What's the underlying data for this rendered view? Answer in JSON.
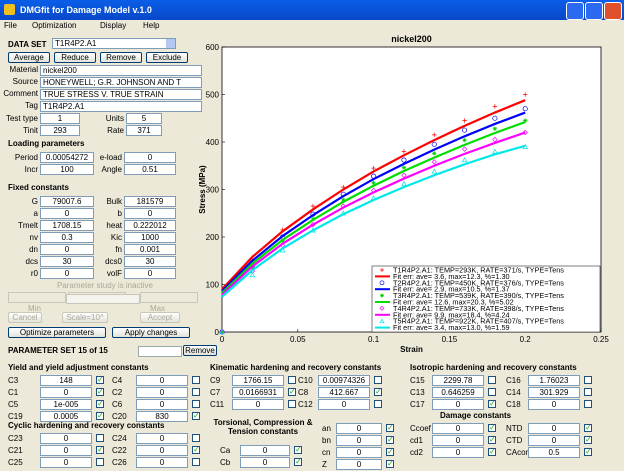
{
  "window": {
    "title": "DMGfit for Damage Model v.1.0",
    "menu": [
      "File",
      "Optimization",
      "Display",
      "Help"
    ]
  },
  "data_set": {
    "label": "DATA SET",
    "selected": "T1R4P2.A1",
    "buttons": [
      "Average",
      "Reduce",
      "Remove",
      "Exclude"
    ],
    "fields": [
      {
        "label": "Material",
        "value": "nickel200"
      },
      {
        "label": "Source",
        "value": "HONEYWELL; G.R. JOHNSON AND T"
      },
      {
        "label": "Comment",
        "value": "TRUE STRESS V. TRUE STRAIN"
      },
      {
        "label": "Tag",
        "value": "T1R4P2.A1"
      }
    ],
    "pairs": [
      {
        "label": "Test type",
        "value": "1",
        "label2": "Units",
        "value2": "5"
      },
      {
        "label": "Tinit",
        "value": "293",
        "label2": "Rate",
        "value2": "371"
      }
    ]
  },
  "loading": {
    "title": "Loading parameters",
    "pairs": [
      {
        "label": "Period",
        "value": "0.00054272",
        "label2": "e-load",
        "value2": "0"
      },
      {
        "label": "Incr",
        "value": "100",
        "label2": "Angle",
        "value2": "0.51"
      }
    ]
  },
  "fixed": {
    "title": "Fixed constants",
    "pairs": [
      {
        "label": "G",
        "value": "79007.6",
        "label2": "Bulk",
        "value2": "181579"
      },
      {
        "label": "a",
        "value": "0",
        "label2": "b",
        "value2": "0"
      },
      {
        "label": "Tmelt",
        "value": "1708.15",
        "label2": "heat",
        "value2": "0.222012"
      },
      {
        "label": "nv",
        "value": "0.3",
        "label2": "Kic",
        "value2": "1000"
      },
      {
        "label": "dn",
        "value": "0",
        "label2": "fn",
        "value2": "0.001"
      },
      {
        "label": "dcs",
        "value": "30",
        "label2": "dcs0",
        "value2": "30"
      },
      {
        "label": "r0",
        "value": "0",
        "label2": "volF",
        "value2": "0"
      }
    ]
  },
  "study": {
    "note": "Parameter study is inactive",
    "min": "Min",
    "max": "Max",
    "buttons": [
      "Cancel",
      "Scale=10^",
      "Accept"
    ]
  },
  "actions": [
    "Optimize parameters",
    "Apply changes"
  ],
  "parameter_set": {
    "label": "PARAMETER SET 15 of 15",
    "button": "Remove"
  },
  "groups": [
    {
      "title": "Yield and yield adjustment constants",
      "fields": [
        {
          "label": "C3",
          "value": "148",
          "checked": true
        },
        {
          "label": "C4",
          "value": "0",
          "checked": false
        },
        {
          "label": "C1",
          "value": "0",
          "checked": true
        },
        {
          "label": "C2",
          "value": "0",
          "checked": false
        },
        {
          "label": "C5",
          "value": "1e-005",
          "checked": true
        },
        {
          "label": "C6",
          "value": "0",
          "checked": false
        },
        {
          "label": "C19",
          "value": "0.0005",
          "checked": true
        },
        {
          "label": "C20",
          "value": "830",
          "checked": true
        }
      ]
    },
    {
      "title": "Cyclic hardening and recovery constants",
      "fields": [
        {
          "label": "C23",
          "value": "0",
          "checked": false
        },
        {
          "label": "C24",
          "value": "0",
          "checked": false
        },
        {
          "label": "C21",
          "value": "0",
          "checked": true
        },
        {
          "label": "C22",
          "value": "0",
          "checked": true
        },
        {
          "label": "C25",
          "value": "0",
          "checked": false
        },
        {
          "label": "C26",
          "value": "0",
          "checked": false
        }
      ]
    },
    {
      "title": "Kinematic hardening and recovery constants",
      "fields": [
        {
          "label": "C9",
          "value": "1766.15",
          "checked": false
        },
        {
          "label": "C10",
          "value": "0.00974326",
          "checked": false
        },
        {
          "label": "C7",
          "value": "0.0166931",
          "checked": true
        },
        {
          "label": "C8",
          "value": "412.667",
          "checked": true
        },
        {
          "label": "C11",
          "value": "0",
          "checked": false
        },
        {
          "label": "C12",
          "value": "0",
          "checked": false
        }
      ]
    },
    {
      "title": "Torsional, Compression & Tension constants",
      "fields": [
        {
          "label": "Ca",
          "value": "0",
          "checked": true
        },
        {
          "label": "Cb",
          "value": "0",
          "checked": true
        }
      ]
    },
    {
      "fields": [
        {
          "label": "an",
          "value": "0",
          "checked": true
        },
        {
          "label": "bn",
          "value": "0",
          "checked": true
        },
        {
          "label": "cn",
          "value": "0",
          "checked": true
        },
        {
          "label": "Z",
          "value": "0",
          "checked": true
        }
      ]
    },
    {
      "title": "Isotropic hardening and recovery constants",
      "fields": [
        {
          "label": "C15",
          "value": "2299.78",
          "checked": false
        },
        {
          "label": "C16",
          "value": "1.76023",
          "checked": false
        },
        {
          "label": "C13",
          "value": "0.646259",
          "checked": false
        },
        {
          "label": "C14",
          "value": "301.929",
          "checked": false
        },
        {
          "label": "C17",
          "value": "0",
          "checked": true
        },
        {
          "label": "C18",
          "value": "0",
          "checked": false
        }
      ]
    },
    {
      "title": "Damage constants",
      "fields": [
        {
          "label": "Ccoef",
          "value": "0",
          "checked": true
        },
        {
          "label": "NTD",
          "value": "0",
          "checked": true
        },
        {
          "label": "cd1",
          "value": "0",
          "checked": true
        },
        {
          "label": "CTD",
          "value": "0",
          "checked": true
        },
        {
          "label": "cd2",
          "value": "0",
          "checked": true
        },
        {
          "label": "CAcon",
          "value": "0.5",
          "checked": true
        }
      ]
    }
  ],
  "chart_data": {
    "type": "scatter",
    "title": "nickel200",
    "xlabel": "Strain",
    "ylabel": "Stress (MPa)",
    "x": [
      0,
      0.02,
      0.04,
      0.06,
      0.08,
      0.1,
      0.12,
      0.14,
      0.16,
      0.18,
      0.2
    ],
    "xlim": [
      0,
      0.25
    ],
    "xticks": [
      0,
      0.05,
      0.1,
      0.15,
      0.2,
      0.25
    ],
    "ylim": [
      0,
      600
    ],
    "yticks": [
      0,
      100,
      200,
      300,
      400,
      500,
      600
    ],
    "series": [
      {
        "name": "T1R4P2.A1: TEMP=293K, RATE=371/s, TYPE=Tens",
        "color": "#ff0000",
        "marker": "plus",
        "values": [
          0,
          150,
          215,
          265,
          305,
          345,
          380,
          415,
          445,
          475,
          500
        ]
      },
      {
        "name": "Fit err: ave= 3.6, max=12.3, %=1.30",
        "color": "#ff0000",
        "values": [
          90,
          158,
          212,
          258,
          300,
          338,
          372,
          404,
          434,
          462,
          488
        ]
      },
      {
        "name": "T2R4P2.A1: TEMP=450K, RATE=376/s, TYPE=Tens",
        "color": "#0000ff",
        "marker": "circle",
        "values": [
          0,
          140,
          200,
          248,
          290,
          328,
          362,
          395,
          425,
          450,
          470
        ]
      },
      {
        "name": "Fit err: ave= 2.9, max=10.5, %=1.37",
        "color": "#0000ff",
        "values": [
          86,
          150,
          202,
          246,
          286,
          322,
          354,
          384,
          412,
          438,
          462
        ]
      },
      {
        "name": "T3R4P2.A1: TEMP=539K, RATE=390/s, TYPE=Tens",
        "color": "#00cc00",
        "marker": "star",
        "values": [
          0,
          135,
          192,
          238,
          278,
          314,
          346,
          376,
          404,
          428,
          445
        ]
      },
      {
        "name": "Fit err: ave= 12.6, max=20.3, %=5.02",
        "color": "#00dd00",
        "values": [
          82,
          144,
          194,
          236,
          274,
          308,
          339,
          367,
          394,
          419,
          442
        ]
      },
      {
        "name": "T4R4P2.A1: TEMP=733K, RATE=398/s, TYPE=Tens",
        "color": "#ff00ff",
        "marker": "diamond",
        "values": [
          0,
          128,
          182,
          226,
          265,
          298,
          330,
          358,
          385,
          405,
          420
        ]
      },
      {
        "name": "Fit err: ave= 9.9, max=18.4, %=4.24",
        "color": "#ff00ff",
        "values": [
          78,
          138,
          186,
          226,
          262,
          294,
          323,
          350,
          375,
          398,
          420
        ]
      },
      {
        "name": "T5R4P2.A1: TEMP=922K, RATE=407/s, TYPE=Tens",
        "color": "#00e0e0",
        "marker": "triangle",
        "values": [
          0,
          120,
          172,
          214,
          250,
          282,
          312,
          338,
          362,
          380,
          390
        ]
      },
      {
        "name": "Fit err: ave= 3.4, max=13.0, %=1.59",
        "color": "#00e8e8",
        "values": [
          74,
          130,
          176,
          214,
          248,
          278,
          305,
          330,
          353,
          374,
          392
        ]
      }
    ]
  }
}
